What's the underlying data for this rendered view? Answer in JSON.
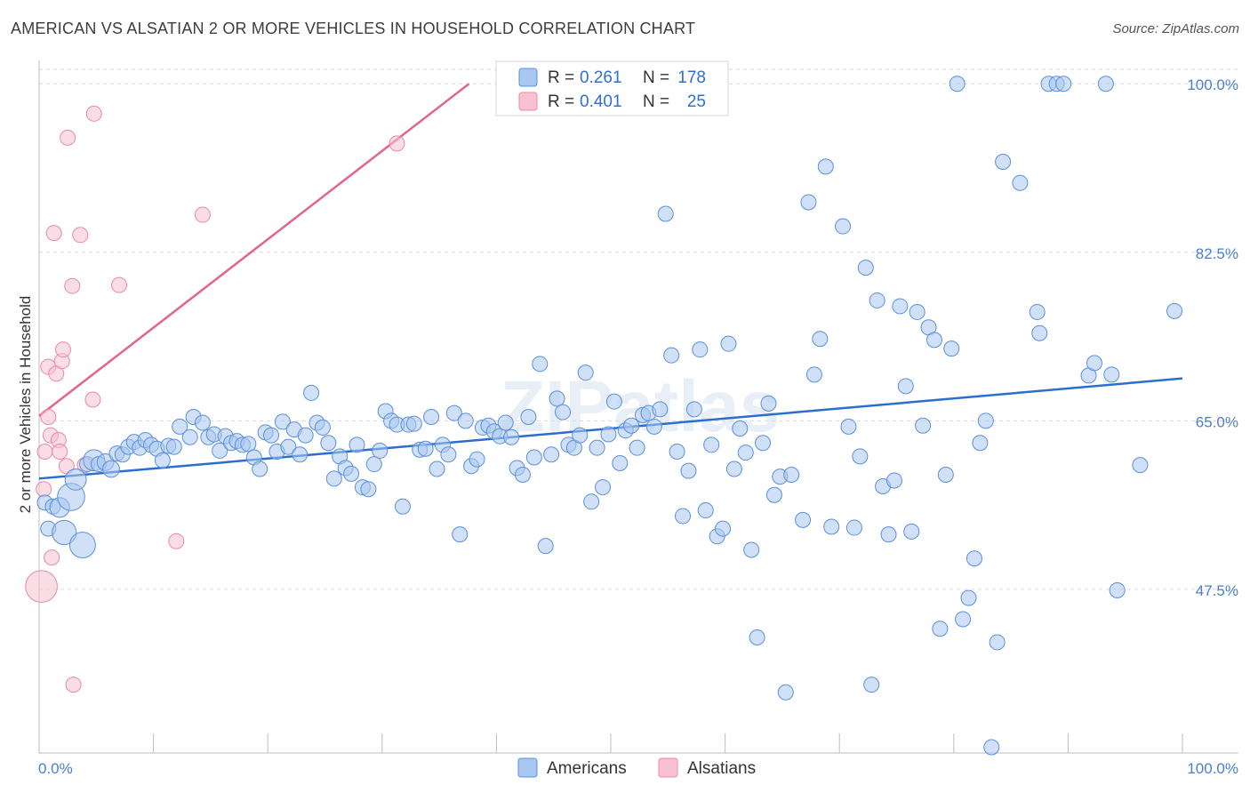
{
  "header": {
    "title": "AMERICAN VS ALSATIAN 2 OR MORE VEHICLES IN HOUSEHOLD CORRELATION CHART",
    "source": "Source: ZipAtlas.com"
  },
  "legend": {
    "americans": {
      "r_label": "R =",
      "r_value": "0.261",
      "n_label": "N =",
      "n_value": "178"
    },
    "alsatians": {
      "r_label": "R =",
      "r_value": "0.401",
      "n_label": "N =",
      "n_value": "25"
    }
  },
  "bottom_legend": {
    "americans": "Americans",
    "alsatians": "Alsatians"
  },
  "watermark": "ZIPatlas",
  "colors": {
    "americans_fill": "#a9c8f0",
    "americans_stroke": "#5b8fdc",
    "americans_line": "#2a6fce",
    "alsatians_fill": "#f7c1d1",
    "alsatians_stroke": "#e88aa6",
    "alsatians_line": "#e0668f",
    "grid": "#d9d9d9",
    "axis_text": "#4a7ecf"
  },
  "chart_data": {
    "type": "scatter",
    "title": "AMERICAN VS ALSATIAN 2 OR MORE VEHICLES IN HOUSEHOLD CORRELATION CHART",
    "xlabel": "",
    "ylabel": "2 or more Vehicles in Household",
    "xlim": [
      0,
      100
    ],
    "ylim": [
      30.5,
      101.5
    ],
    "y_ticks": [
      {
        "value": 47.5,
        "label": "47.5%"
      },
      {
        "value": 65.0,
        "label": "65.0%"
      },
      {
        "value": 82.5,
        "label": "82.5%"
      },
      {
        "value": 100.0,
        "label": "100.0%"
      }
    ],
    "x_tick_labels": [
      {
        "value": 0,
        "label": "0.0%"
      },
      {
        "value": 100,
        "label": "100.0%"
      }
    ],
    "x_minor_ticks": [
      0,
      10,
      20,
      30,
      40,
      50,
      60,
      70,
      80,
      90,
      100
    ],
    "grid": true,
    "legend_position": "top-center",
    "series": [
      {
        "name": "Americans",
        "trend": {
          "x": [
            0,
            100
          ],
          "y": [
            59.0,
            69.4
          ]
        },
        "points": [
          [
            0.5,
            56.5,
            1
          ],
          [
            0.8,
            53.8,
            1
          ],
          [
            1.2,
            56.1,
            1
          ],
          [
            1.8,
            56.0,
            1.3
          ],
          [
            2.2,
            53.4,
            1.6
          ],
          [
            2.8,
            57.1,
            1.8
          ],
          [
            3.2,
            58.9,
            1.4
          ],
          [
            3.8,
            52.1,
            1.7
          ],
          [
            4.2,
            60.5,
            1
          ],
          [
            4.8,
            60.9,
            1.4
          ],
          [
            5.2,
            60.5,
            1
          ],
          [
            5.8,
            60.7,
            1.1
          ],
          [
            6.3,
            60.0,
            1.1
          ],
          [
            6.8,
            61.6,
            1
          ],
          [
            7.3,
            61.5,
            1
          ],
          [
            7.8,
            62.3,
            1
          ],
          [
            8.3,
            62.8,
            1
          ],
          [
            8.8,
            62.2,
            1
          ],
          [
            9.3,
            63.0,
            1
          ],
          [
            9.8,
            62.5,
            1
          ],
          [
            10.3,
            62.1,
            1
          ],
          [
            10.8,
            60.9,
            1
          ],
          [
            11.3,
            62.4,
            1
          ],
          [
            11.8,
            62.3,
            1
          ],
          [
            12.3,
            64.4,
            1
          ],
          [
            13.2,
            63.3,
            1
          ],
          [
            13.5,
            65.4,
            1
          ],
          [
            14.3,
            64.8,
            1
          ],
          [
            14.8,
            63.3,
            1
          ],
          [
            15.3,
            63.6,
            1
          ],
          [
            15.8,
            61.9,
            1
          ],
          [
            16.3,
            63.4,
            1
          ],
          [
            16.8,
            62.7,
            1
          ],
          [
            17.3,
            62.9,
            1
          ],
          [
            17.8,
            62.5,
            1
          ],
          [
            18.3,
            62.6,
            1
          ],
          [
            18.8,
            61.2,
            1
          ],
          [
            19.3,
            60.0,
            1
          ],
          [
            19.8,
            63.8,
            1
          ],
          [
            20.3,
            63.5,
            1
          ],
          [
            20.8,
            61.8,
            1
          ],
          [
            21.3,
            64.9,
            1
          ],
          [
            21.8,
            62.3,
            1
          ],
          [
            22.3,
            64.1,
            1
          ],
          [
            22.8,
            61.5,
            1
          ],
          [
            23.3,
            63.5,
            1
          ],
          [
            23.8,
            67.9,
            1
          ],
          [
            24.3,
            64.8,
            1
          ],
          [
            24.8,
            64.3,
            1
          ],
          [
            25.3,
            62.7,
            1
          ],
          [
            25.8,
            59.0,
            1
          ],
          [
            26.3,
            61.3,
            1
          ],
          [
            26.8,
            60.1,
            1
          ],
          [
            27.3,
            59.5,
            1
          ],
          [
            27.8,
            62.5,
            1
          ],
          [
            28.3,
            58.1,
            1
          ],
          [
            28.8,
            57.9,
            1
          ],
          [
            29.3,
            60.5,
            1
          ],
          [
            29.8,
            61.9,
            1
          ],
          [
            30.3,
            66.0,
            1
          ],
          [
            30.8,
            65.0,
            1
          ],
          [
            31.3,
            64.6,
            1
          ],
          [
            31.8,
            56.1,
            1
          ],
          [
            32.3,
            64.6,
            1
          ],
          [
            32.8,
            64.7,
            1
          ],
          [
            33.3,
            62.0,
            1
          ],
          [
            33.8,
            62.1,
            1
          ],
          [
            34.3,
            65.4,
            1
          ],
          [
            34.8,
            60.0,
            1
          ],
          [
            35.3,
            62.5,
            1
          ],
          [
            35.8,
            61.5,
            1
          ],
          [
            36.3,
            65.8,
            1
          ],
          [
            36.8,
            53.2,
            1
          ],
          [
            37.3,
            65.0,
            1
          ],
          [
            37.8,
            60.3,
            1
          ],
          [
            38.3,
            61.0,
            1
          ],
          [
            38.8,
            64.3,
            1
          ],
          [
            39.3,
            64.5,
            1
          ],
          [
            39.8,
            63.9,
            1
          ],
          [
            40.3,
            63.4,
            1
          ],
          [
            40.8,
            64.8,
            1
          ],
          [
            41.3,
            63.3,
            1
          ],
          [
            41.8,
            60.1,
            1
          ],
          [
            42.3,
            59.4,
            1
          ],
          [
            42.8,
            65.4,
            1
          ],
          [
            43.3,
            61.2,
            1
          ],
          [
            43.8,
            70.9,
            1
          ],
          [
            44.3,
            52.0,
            1
          ],
          [
            44.8,
            61.5,
            1
          ],
          [
            45.3,
            67.3,
            1
          ],
          [
            45.8,
            65.9,
            1
          ],
          [
            46.3,
            62.5,
            1
          ],
          [
            46.8,
            62.2,
            1
          ],
          [
            47.3,
            63.5,
            1
          ],
          [
            47.8,
            70.0,
            1
          ],
          [
            48.3,
            56.6,
            1
          ],
          [
            48.8,
            62.2,
            1
          ],
          [
            49.3,
            58.1,
            1
          ],
          [
            49.8,
            63.6,
            1
          ],
          [
            50.3,
            67.0,
            1
          ],
          [
            50.8,
            60.6,
            1
          ],
          [
            51.3,
            64.0,
            1
          ],
          [
            51.8,
            64.5,
            1
          ],
          [
            52.3,
            62.2,
            1
          ],
          [
            52.8,
            65.6,
            1
          ],
          [
            53.3,
            65.8,
            1
          ],
          [
            53.8,
            64.4,
            1
          ],
          [
            54.3,
            66.2,
            1
          ],
          [
            54.8,
            86.5,
            1
          ],
          [
            55.3,
            71.8,
            1
          ],
          [
            55.8,
            61.8,
            1
          ],
          [
            56.3,
            55.1,
            1
          ],
          [
            56.8,
            59.8,
            1
          ],
          [
            57.3,
            66.2,
            1
          ],
          [
            57.8,
            72.4,
            1
          ],
          [
            58.3,
            55.7,
            1
          ],
          [
            58.8,
            62.5,
            1
          ],
          [
            59.3,
            53.0,
            1
          ],
          [
            59.8,
            53.8,
            1
          ],
          [
            60.3,
            73.0,
            1
          ],
          [
            60.8,
            60.0,
            1
          ],
          [
            61.3,
            64.2,
            1
          ],
          [
            61.8,
            61.7,
            1
          ],
          [
            62.3,
            51.6,
            1
          ],
          [
            62.8,
            42.5,
            1
          ],
          [
            63.3,
            62.7,
            1
          ],
          [
            63.8,
            66.8,
            1
          ],
          [
            64.3,
            57.3,
            1
          ],
          [
            64.8,
            59.2,
            1
          ],
          [
            65.3,
            36.8,
            1
          ],
          [
            65.8,
            59.4,
            1
          ],
          [
            66.8,
            54.7,
            1
          ],
          [
            67.3,
            87.7,
            1
          ],
          [
            67.8,
            69.8,
            1
          ],
          [
            68.3,
            73.5,
            1
          ],
          [
            68.8,
            91.4,
            1
          ],
          [
            69.3,
            54.0,
            1
          ],
          [
            70.3,
            85.2,
            1
          ],
          [
            70.8,
            64.4,
            1
          ],
          [
            71.3,
            53.9,
            1
          ],
          [
            71.8,
            61.3,
            1
          ],
          [
            72.3,
            80.9,
            1
          ],
          [
            72.8,
            37.6,
            1
          ],
          [
            73.3,
            77.5,
            1
          ],
          [
            73.8,
            58.2,
            1
          ],
          [
            74.3,
            53.2,
            1
          ],
          [
            74.8,
            58.8,
            1
          ],
          [
            75.3,
            76.9,
            1
          ],
          [
            75.8,
            68.6,
            1
          ],
          [
            76.3,
            53.5,
            1
          ],
          [
            76.8,
            76.3,
            1
          ],
          [
            77.3,
            64.5,
            1
          ],
          [
            77.8,
            74.7,
            1
          ],
          [
            78.3,
            73.4,
            1
          ],
          [
            78.8,
            43.4,
            1
          ],
          [
            79.3,
            59.4,
            1
          ],
          [
            79.8,
            72.5,
            1
          ],
          [
            80.3,
            100.0,
            1
          ],
          [
            80.8,
            44.4,
            1
          ],
          [
            81.3,
            46.6,
            1
          ],
          [
            81.8,
            50.7,
            1
          ],
          [
            82.3,
            62.7,
            1
          ],
          [
            82.8,
            65.0,
            1
          ],
          [
            83.3,
            31.1,
            1
          ],
          [
            83.8,
            42.0,
            1
          ],
          [
            84.3,
            91.9,
            1
          ],
          [
            85.8,
            89.7,
            1
          ],
          [
            87.3,
            76.3,
            1
          ],
          [
            87.5,
            74.1,
            1
          ],
          [
            88.3,
            100.0,
            1
          ],
          [
            89.0,
            100.0,
            1
          ],
          [
            89.6,
            100.0,
            1
          ],
          [
            91.8,
            69.7,
            1
          ],
          [
            92.3,
            71.0,
            1
          ],
          [
            93.3,
            100.0,
            1
          ],
          [
            93.8,
            69.8,
            1
          ],
          [
            94.3,
            47.4,
            1
          ],
          [
            96.3,
            60.4,
            1
          ],
          [
            99.3,
            76.4,
            1
          ]
        ]
      },
      {
        "name": "Alsatians",
        "trend": {
          "x": [
            0,
            37.6
          ],
          "y": [
            65.5,
            100.0
          ]
        },
        "points": [
          [
            0.2,
            47.8,
            2.1
          ],
          [
            0.4,
            57.9,
            1
          ],
          [
            0.5,
            61.8,
            1
          ],
          [
            0.8,
            65.4,
            1
          ],
          [
            0.8,
            70.6,
            1
          ],
          [
            1.0,
            63.5,
            1
          ],
          [
            1.1,
            50.8,
            1
          ],
          [
            1.3,
            84.5,
            1
          ],
          [
            1.5,
            69.9,
            1
          ],
          [
            1.7,
            63.0,
            1
          ],
          [
            1.8,
            61.8,
            1
          ],
          [
            2.0,
            71.2,
            1
          ],
          [
            2.1,
            72.4,
            1
          ],
          [
            2.4,
            60.3,
            1
          ],
          [
            2.5,
            94.4,
            1
          ],
          [
            2.9,
            79.0,
            1
          ],
          [
            3.0,
            37.6,
            1
          ],
          [
            3.6,
            84.3,
            1
          ],
          [
            4.0,
            60.4,
            1
          ],
          [
            4.7,
            67.2,
            1
          ],
          [
            4.8,
            96.9,
            1
          ],
          [
            7.0,
            79.1,
            1
          ],
          [
            12.0,
            52.5,
            1
          ],
          [
            14.3,
            86.4,
            1
          ],
          [
            31.3,
            93.8,
            1
          ]
        ]
      }
    ]
  }
}
